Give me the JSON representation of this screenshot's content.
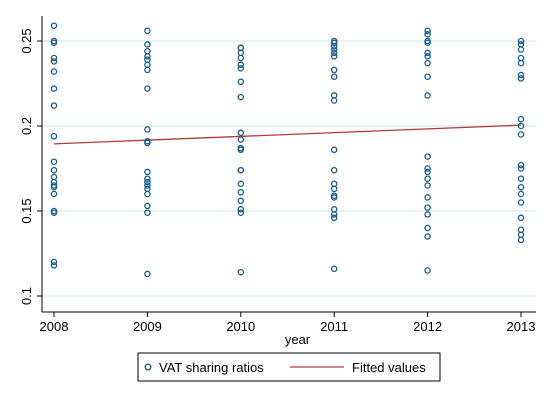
{
  "chart_data": {
    "type": "scatter",
    "xlabel": "year",
    "ylabel": "",
    "xlim": [
      2008,
      2013
    ],
    "ylim": [
      0.1,
      0.26
    ],
    "x_ticks": [
      2008,
      2009,
      2010,
      2011,
      2012,
      2013
    ],
    "x_tick_labels": [
      "2008",
      "2009",
      "2010",
      "2011",
      "2012",
      "2013"
    ],
    "y_ticks": [
      0.1,
      0.15,
      0.2,
      0.25
    ],
    "y_tick_labels": [
      "0.1",
      "0.15",
      "0.2",
      "0.25"
    ],
    "grid": "horizontal",
    "legend_position": "bottom",
    "series": [
      {
        "name": "VAT sharing ratios",
        "kind": "scatter",
        "marker": "hollow-circle",
        "color": "#1a5a8a",
        "points": [
          [
            2008,
            0.259
          ],
          [
            2008,
            0.25
          ],
          [
            2008,
            0.249
          ],
          [
            2008,
            0.24
          ],
          [
            2008,
            0.238
          ],
          [
            2008,
            0.232
          ],
          [
            2008,
            0.222
          ],
          [
            2008,
            0.212
          ],
          [
            2008,
            0.194
          ],
          [
            2008,
            0.179
          ],
          [
            2008,
            0.174
          ],
          [
            2008,
            0.17
          ],
          [
            2008,
            0.167
          ],
          [
            2008,
            0.165
          ],
          [
            2008,
            0.164
          ],
          [
            2008,
            0.16
          ],
          [
            2008,
            0.15
          ],
          [
            2008,
            0.149
          ],
          [
            2008,
            0.12
          ],
          [
            2008,
            0.118
          ],
          [
            2009,
            0.256
          ],
          [
            2009,
            0.248
          ],
          [
            2009,
            0.244
          ],
          [
            2009,
            0.241
          ],
          [
            2009,
            0.239
          ],
          [
            2009,
            0.236
          ],
          [
            2009,
            0.233
          ],
          [
            2009,
            0.222
          ],
          [
            2009,
            0.198
          ],
          [
            2009,
            0.191
          ],
          [
            2009,
            0.19
          ],
          [
            2009,
            0.173
          ],
          [
            2009,
            0.169
          ],
          [
            2009,
            0.167
          ],
          [
            2009,
            0.165
          ],
          [
            2009,
            0.163
          ],
          [
            2009,
            0.16
          ],
          [
            2009,
            0.153
          ],
          [
            2009,
            0.149
          ],
          [
            2009,
            0.113
          ],
          [
            2010,
            0.246
          ],
          [
            2010,
            0.246
          ],
          [
            2010,
            0.243
          ],
          [
            2010,
            0.24
          ],
          [
            2010,
            0.236
          ],
          [
            2010,
            0.234
          ],
          [
            2010,
            0.226
          ],
          [
            2010,
            0.217
          ],
          [
            2010,
            0.196
          ],
          [
            2010,
            0.192
          ],
          [
            2010,
            0.187
          ],
          [
            2010,
            0.186
          ],
          [
            2010,
            0.174
          ],
          [
            2010,
            0.174
          ],
          [
            2010,
            0.166
          ],
          [
            2010,
            0.161
          ],
          [
            2010,
            0.156
          ],
          [
            2010,
            0.151
          ],
          [
            2010,
            0.149
          ],
          [
            2010,
            0.114
          ],
          [
            2011,
            0.25
          ],
          [
            2011,
            0.249
          ],
          [
            2011,
            0.247
          ],
          [
            2011,
            0.245
          ],
          [
            2011,
            0.243
          ],
          [
            2011,
            0.241
          ],
          [
            2011,
            0.233
          ],
          [
            2011,
            0.229
          ],
          [
            2011,
            0.218
          ],
          [
            2011,
            0.215
          ],
          [
            2011,
            0.186
          ],
          [
            2011,
            0.174
          ],
          [
            2011,
            0.166
          ],
          [
            2011,
            0.163
          ],
          [
            2011,
            0.159
          ],
          [
            2011,
            0.158
          ],
          [
            2011,
            0.151
          ],
          [
            2011,
            0.148
          ],
          [
            2011,
            0.146
          ],
          [
            2011,
            0.116
          ],
          [
            2012,
            0.256
          ],
          [
            2012,
            0.254
          ],
          [
            2012,
            0.25
          ],
          [
            2012,
            0.249
          ],
          [
            2012,
            0.243
          ],
          [
            2012,
            0.241
          ],
          [
            2012,
            0.237
          ],
          [
            2012,
            0.229
          ],
          [
            2012,
            0.218
          ],
          [
            2012,
            0.182
          ],
          [
            2012,
            0.175
          ],
          [
            2012,
            0.173
          ],
          [
            2012,
            0.169
          ],
          [
            2012,
            0.165
          ],
          [
            2012,
            0.158
          ],
          [
            2012,
            0.152
          ],
          [
            2012,
            0.148
          ],
          [
            2012,
            0.14
          ],
          [
            2012,
            0.135
          ],
          [
            2012,
            0.115
          ],
          [
            2013,
            0.25
          ],
          [
            2013,
            0.248
          ],
          [
            2013,
            0.245
          ],
          [
            2013,
            0.24
          ],
          [
            2013,
            0.237
          ],
          [
            2013,
            0.23
          ],
          [
            2013,
            0.228
          ],
          [
            2013,
            0.204
          ],
          [
            2013,
            0.2
          ],
          [
            2013,
            0.195
          ],
          [
            2013,
            0.177
          ],
          [
            2013,
            0.175
          ],
          [
            2013,
            0.169
          ],
          [
            2013,
            0.164
          ],
          [
            2013,
            0.16
          ],
          [
            2013,
            0.155
          ],
          [
            2013,
            0.146
          ],
          [
            2013,
            0.139
          ],
          [
            2013,
            0.136
          ],
          [
            2013,
            0.133
          ]
        ]
      },
      {
        "name": "Fitted values",
        "kind": "line",
        "color": "#b33a3a",
        "points": [
          [
            2008,
            0.1895
          ],
          [
            2013,
            0.2005
          ]
        ]
      }
    ]
  }
}
